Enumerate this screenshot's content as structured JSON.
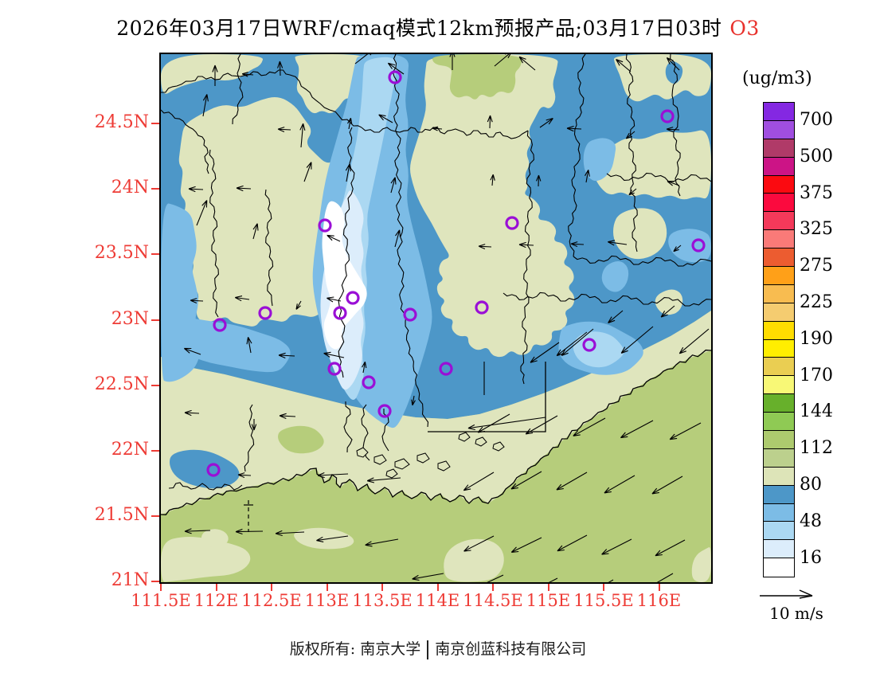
{
  "title": {
    "text": "2026年03月17日WRF/cmaq模式12km预报产品;03月17日03时",
    "pollutant": "O3"
  },
  "axes": {
    "lat_labels": [
      "24.5N",
      "24N",
      "23.5N",
      "23N",
      "22.5N",
      "22N",
      "21.5N",
      "21N"
    ],
    "lon_labels": [
      "111.5E",
      "112E",
      "112.5E",
      "113E",
      "113.5E",
      "114E",
      "114.5E",
      "115E",
      "115.5E",
      "116E"
    ]
  },
  "legend": {
    "unit": "(ug/m3)",
    "values": [
      "700",
      "500",
      "375",
      "325",
      "275",
      "225",
      "190",
      "170",
      "144",
      "112",
      "80",
      "48",
      "16"
    ],
    "label_after_segment": [
      1,
      3,
      5,
      7,
      9,
      11,
      13,
      15,
      17,
      19,
      21,
      23,
      25
    ],
    "segments": [
      "#8428e2",
      "#a04ee0",
      "#b03a68",
      "#cc1486",
      "#fb0a10",
      "#fb0a3e",
      "#f4395a",
      "#fa7a78",
      "#ec5c30",
      "#ffa018",
      "#f8bc50",
      "#f5cc70",
      "#ffdd00",
      "#ffee00",
      "#eace52",
      "#f8f876",
      "#67b02b",
      "#8fca54",
      "#adca6e",
      "#bcd08d",
      "#dde4b8",
      "#4d97c8",
      "#7cbce6",
      "#abd8f2",
      "#dcedfb",
      "#ffffff"
    ]
  },
  "wind": {
    "legend_label": "10 m/s",
    "arrows": [
      [
        68,
        40,
        -90,
        26
      ],
      [
        150,
        27,
        -92,
        18
      ],
      [
        244,
        12,
        -38,
        30
      ],
      [
        305,
        25,
        -145,
        24
      ],
      [
        366,
        20,
        -90,
        25
      ],
      [
        419,
        15,
        -40,
        28
      ],
      [
        470,
        20,
        -140,
        26
      ],
      [
        590,
        22,
        -140,
        24
      ],
      [
        651,
        20,
        -135,
        22
      ],
      [
        53,
        78,
        -80,
        28
      ],
      [
        116,
        26,
        185,
        14
      ],
      [
        176,
        117,
        -85,
        30
      ],
      [
        163,
        95,
        183,
        16
      ],
      [
        236,
        94,
        -80,
        14
      ],
      [
        291,
        86,
        -150,
        20
      ],
      [
        353,
        94,
        185,
        12
      ],
      [
        413,
        93,
        -88,
        16
      ],
      [
        476,
        92,
        -35,
        20
      ],
      [
        528,
        94,
        183,
        18
      ],
      [
        595,
        97,
        140,
        14
      ],
      [
        651,
        95,
        183,
        16
      ],
      [
        289,
        174,
        -75,
        20
      ],
      [
        416,
        165,
        -85,
        14
      ],
      [
        474,
        166,
        -88,
        14
      ],
      [
        534,
        161,
        -80,
        16
      ],
      [
        597,
        169,
        140,
        12
      ],
      [
        651,
        165,
        -160,
        16
      ],
      [
        53,
        170,
        183,
        18
      ],
      [
        113,
        169,
        183,
        18
      ],
      [
        180,
        160,
        -70,
        26
      ],
      [
        233,
        160,
        -80,
        22
      ],
      [
        45,
        215,
        -68,
        34
      ],
      [
        116,
        232,
        -75,
        20
      ],
      [
        225,
        235,
        -155,
        18
      ],
      [
        294,
        242,
        -75,
        22
      ],
      [
        415,
        242,
        183,
        16
      ],
      [
        468,
        240,
        183,
        18
      ],
      [
        531,
        239,
        183,
        16
      ],
      [
        585,
        239,
        188,
        24
      ],
      [
        653,
        240,
        140,
        12
      ],
      [
        53,
        310,
        183,
        16
      ],
      [
        111,
        308,
        188,
        18
      ],
      [
        176,
        310,
        120,
        12
      ],
      [
        226,
        310,
        192,
        18
      ],
      [
        580,
        322,
        140,
        24
      ],
      [
        645,
        316,
        140,
        22
      ],
      [
        50,
        377,
        -160,
        22
      ],
      [
        113,
        375,
        -100,
        20
      ],
      [
        168,
        379,
        183,
        20
      ],
      [
        230,
        381,
        -168,
        26
      ],
      [
        48,
        451,
        183,
        18
      ],
      [
        117,
        458,
        90,
        14
      ],
      [
        169,
        455,
        183,
        20
      ],
      [
        254,
        400,
        -80,
        14
      ],
      [
        318,
        429,
        100,
        12
      ],
      [
        113,
        529,
        183,
        16
      ],
      [
        543,
        345,
        140,
        52
      ],
      [
        618,
        342,
        140,
        52
      ],
      [
        688,
        345,
        140,
        48
      ],
      [
        535,
        349,
        142,
        48
      ],
      [
        500,
        362,
        145,
        44
      ],
      [
        483,
        456,
        172,
        98
      ],
      [
        438,
        452,
        150,
        46
      ],
      [
        498,
        454,
        150,
        46
      ],
      [
        558,
        457,
        151,
        46
      ],
      [
        618,
        460,
        152,
        46
      ],
      [
        678,
        463,
        152,
        44
      ],
      [
        235,
        527,
        177,
        38
      ],
      [
        301,
        532,
        175,
        42
      ],
      [
        418,
        525,
        149,
        44
      ],
      [
        478,
        524,
        150,
        44
      ],
      [
        535,
        525,
        150,
        44
      ],
      [
        595,
        529,
        150,
        44
      ],
      [
        655,
        530,
        150,
        44
      ],
      [
        62,
        598,
        178,
        32
      ],
      [
        128,
        599,
        179,
        34
      ],
      [
        180,
        600,
        177,
        36
      ],
      [
        235,
        605,
        172,
        40
      ],
      [
        298,
        609,
        170,
        42
      ],
      [
        418,
        605,
        153,
        42
      ],
      [
        478,
        607,
        154,
        42
      ],
      [
        535,
        604,
        152,
        42
      ],
      [
        591,
        609,
        153,
        42
      ],
      [
        658,
        610,
        152,
        42
      ],
      [
        355,
        652,
        170,
        40
      ],
      [
        430,
        654,
        155,
        42
      ],
      [
        498,
        658,
        153,
        42
      ],
      [
        568,
        660,
        150,
        40
      ],
      [
        643,
        652,
        150,
        44
      ]
    ]
  },
  "stations": [
    [
      294,
      29
    ],
    [
      636,
      78
    ],
    [
      206,
      215
    ],
    [
      675,
      240
    ],
    [
      441,
      212
    ],
    [
      131,
      325
    ],
    [
      74,
      340
    ],
    [
      241,
      306
    ],
    [
      225,
      325
    ],
    [
      313,
      327
    ],
    [
      403,
      318
    ],
    [
      218,
      395
    ],
    [
      261,
      412
    ],
    [
      358,
      395
    ],
    [
      538,
      365
    ],
    [
      281,
      448
    ],
    [
      66,
      522
    ]
  ],
  "colors": {
    "axis_red": "#ee3b35",
    "pollutant_red": "#e8312c",
    "map_blue": "#4d97c8",
    "blue2": "#7cbce6",
    "blue3": "#abd8f2",
    "blue4": "#dcedfb",
    "core_white": "#ffffff",
    "green_pale": "#dfe5bd",
    "green_olive": "#b6cd7b",
    "marker_purple": "#9a0fd6",
    "line_black": "#000000"
  },
  "footer": {
    "owner": "版权所有: 南京大学",
    "company": "南京创蓝科技有限公司"
  }
}
